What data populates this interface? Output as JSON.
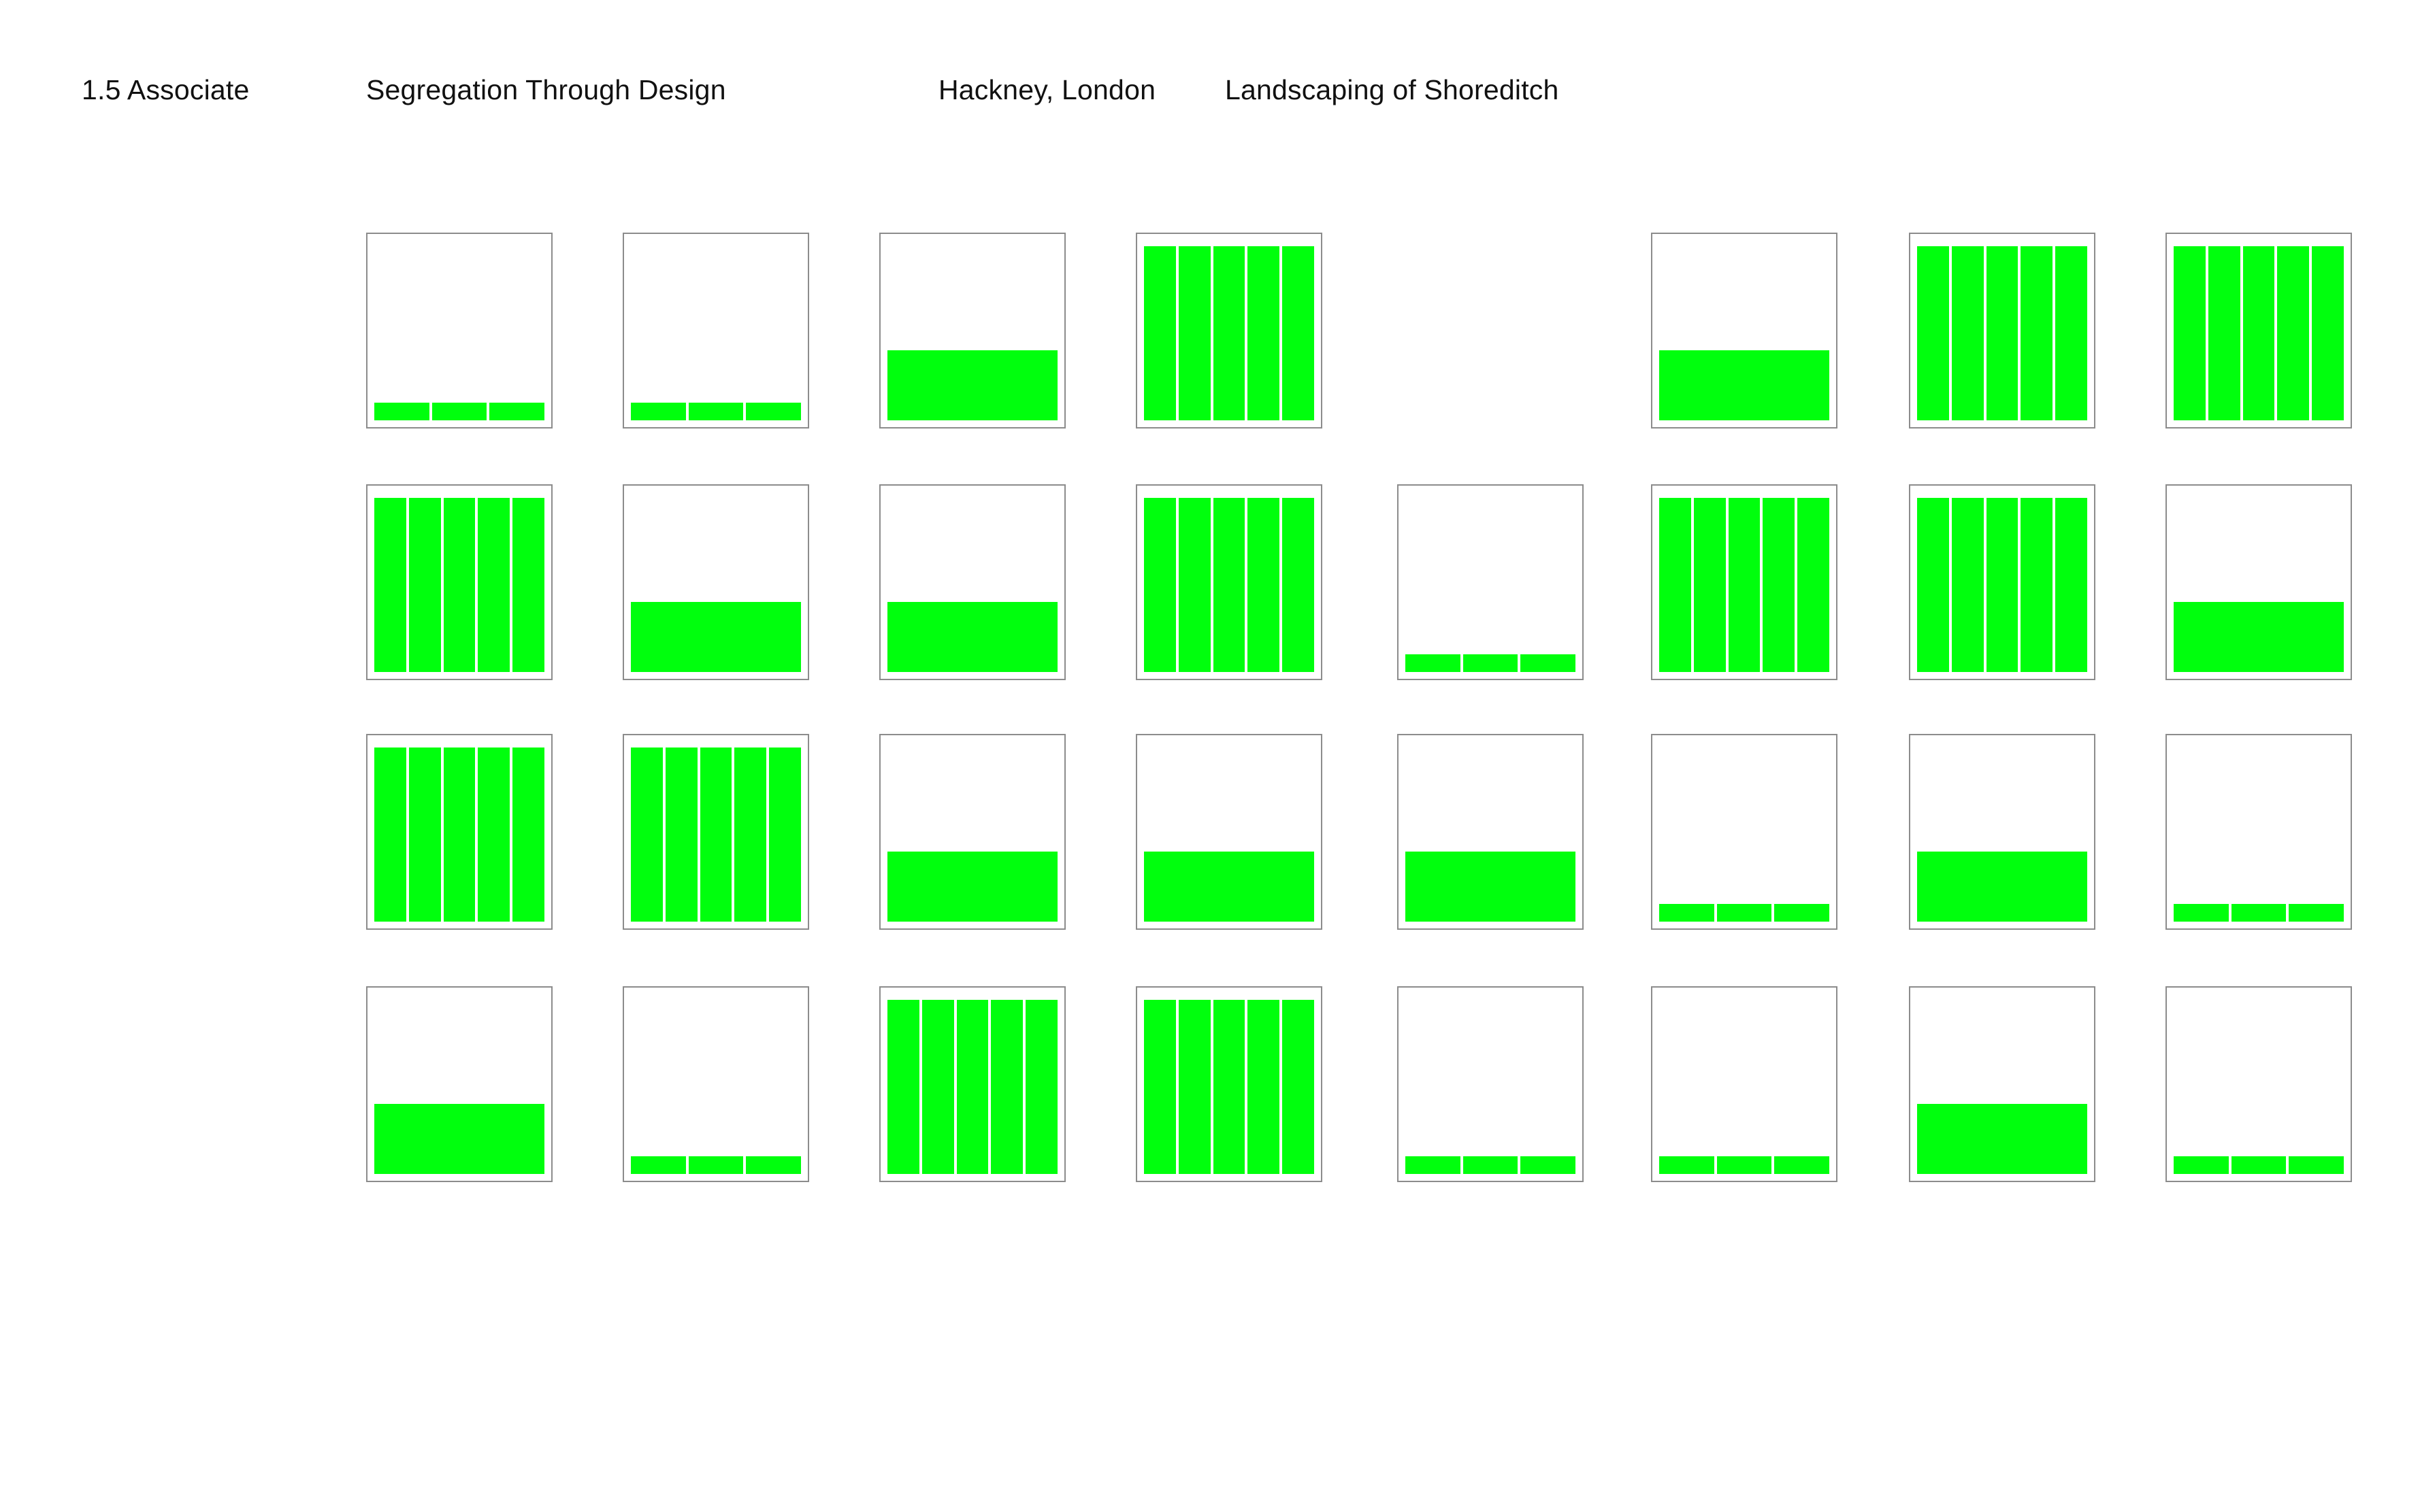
{
  "header": {
    "section": "1.5 Associate",
    "title": "Segregation Through Design",
    "place": "Hackney, London",
    "subtitle": "Landscaping of Shoreditch"
  },
  "colors": {
    "fill": "#00ff0d",
    "tile_border": "#8c8c8c",
    "background": "#ffffff"
  },
  "grid": {
    "rows": [
      [
        "low",
        "low",
        "mid",
        "full",
        "none",
        "mid",
        "full",
        "full"
      ],
      [
        "full",
        "mid",
        "mid",
        "full",
        "low",
        "full",
        "full",
        "mid"
      ],
      [
        "full",
        "full",
        "mid",
        "mid",
        "mid",
        "low",
        "mid",
        "low"
      ],
      [
        "mid",
        "low",
        "full",
        "full",
        "low",
        "low",
        "mid",
        "low"
      ]
    ],
    "levels": {
      "none": {
        "height_fraction": 0.0,
        "segments": 0
      },
      "low": {
        "height_fraction": 0.1,
        "segments": 3
      },
      "mid": {
        "height_fraction": 0.39,
        "segments": 1
      },
      "full": {
        "height_fraction": 0.97,
        "segments": 5
      }
    }
  }
}
